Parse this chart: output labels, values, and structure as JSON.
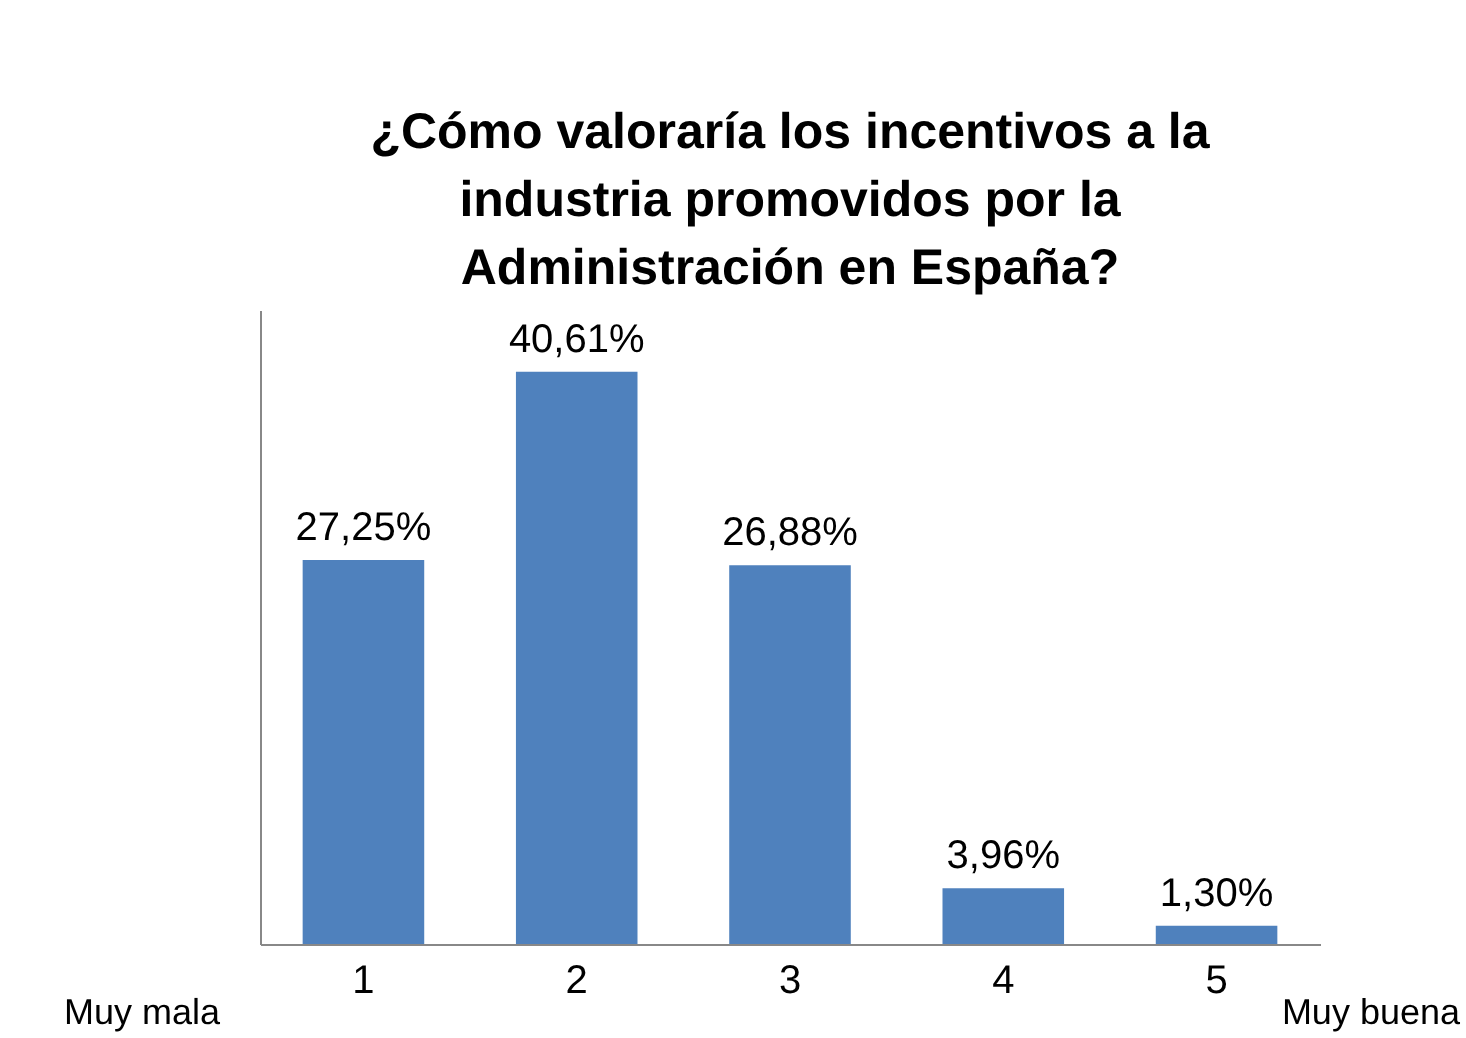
{
  "chart_data": {
    "type": "bar",
    "title": "¿Cómo valoraría los incentivos a la industria promovidos por la Administración en España?",
    "categories": [
      "1",
      "2",
      "3",
      "4",
      "5"
    ],
    "values": [
      27.25,
      40.61,
      26.88,
      3.96,
      1.3
    ],
    "value_labels": [
      "27,25%",
      "40,61%",
      "26,88%",
      "3,96%",
      "1,30%"
    ],
    "color": "#4f81bd",
    "ylim": [
      0,
      45
    ],
    "tick_labels": "x",
    "grid": false,
    "annotations": [
      "Muy mala",
      "Muy buena"
    ]
  }
}
